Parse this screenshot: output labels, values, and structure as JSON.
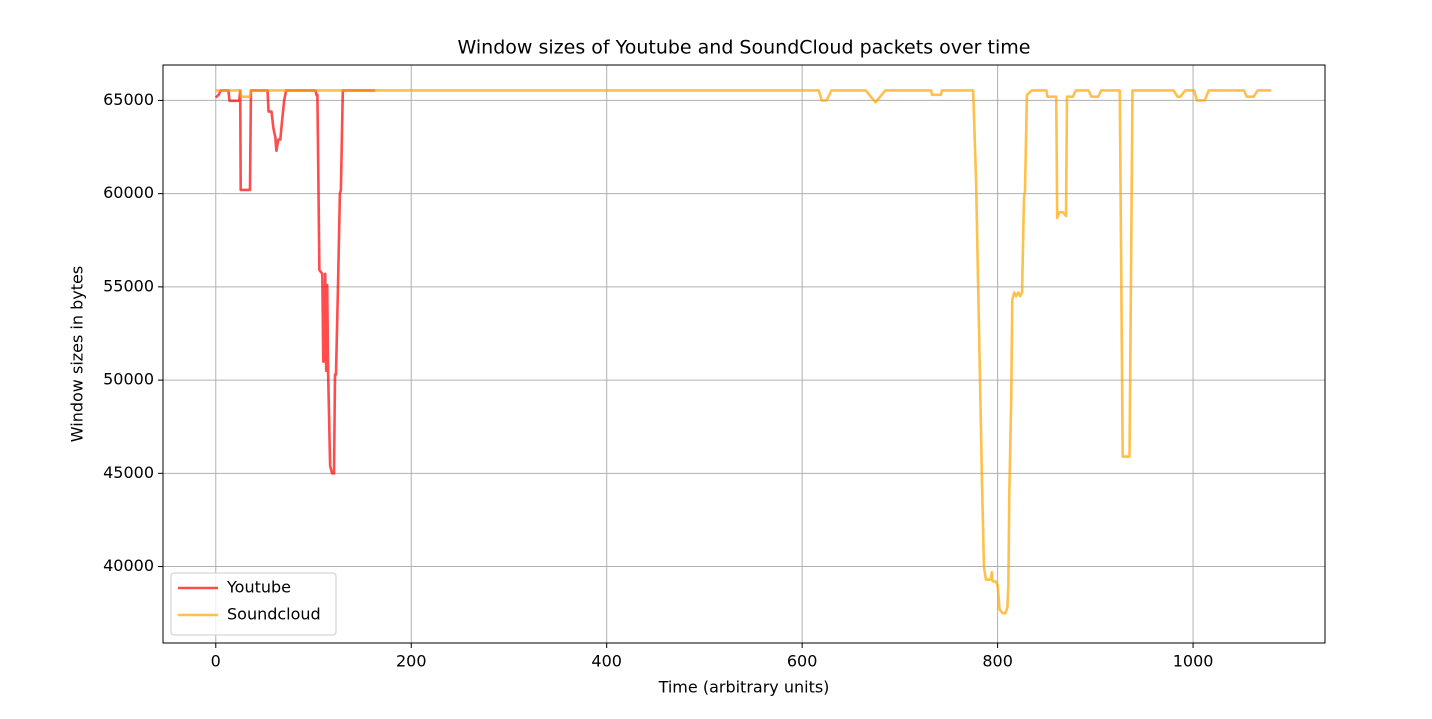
{
  "chart_data": {
    "type": "line",
    "title": "Window sizes of Youtube and SoundCloud packets over time",
    "xlabel": "Time (arbitrary units)",
    "ylabel": "Window sizes in bytes",
    "xlim": [
      -54,
      1135
    ],
    "ylim": [
      35900,
      66900
    ],
    "xticks": [
      0,
      200,
      400,
      600,
      800,
      1000
    ],
    "yticks": [
      40000,
      45000,
      50000,
      55000,
      60000,
      65000
    ],
    "grid": true,
    "legend": "lower left",
    "series": [
      {
        "name": "Youtube",
        "color": "#ff0000",
        "x": [
          0,
          3,
          5,
          13,
          14,
          24,
          25,
          25.5,
          35,
          36,
          53,
          54,
          57,
          59,
          61,
          62,
          64,
          66,
          68,
          70,
          72,
          102,
          103,
          104,
          105,
          106,
          109,
          110,
          111,
          112,
          113,
          114,
          115,
          117,
          119,
          121,
          122,
          123,
          125,
          127,
          128,
          130,
          163
        ],
        "values": [
          65160,
          65300,
          65535,
          65535,
          64980,
          64980,
          65535,
          60200,
          60200,
          65535,
          65535,
          64400,
          64400,
          63500,
          63000,
          62300,
          62900,
          62900,
          64000,
          65000,
          65535,
          65535,
          65300,
          65300,
          60700,
          55900,
          55700,
          51000,
          51000,
          55700,
          50500,
          55100,
          50300,
          45400,
          45000,
          45000,
          50300,
          50300,
          54900,
          60000,
          60200,
          65535,
          65535
        ]
      },
      {
        "name": "Soundcloud",
        "color": "#ffa500",
        "x": [
          0,
          25,
          26,
          35,
          36,
          617,
          620,
          625,
          630,
          665,
          675,
          685,
          732,
          733,
          742,
          743,
          775,
          778,
          780,
          782,
          784,
          786,
          788,
          793,
          794,
          795,
          798,
          800,
          802,
          805,
          808,
          810,
          811,
          812,
          814,
          815,
          817,
          819,
          821,
          823,
          825,
          827,
          828,
          830,
          835,
          850,
          851,
          860,
          861,
          863,
          867,
          870,
          871,
          877,
          880,
          893,
          896,
          903,
          906,
          925,
          926,
          928,
          935,
          936,
          938,
          980,
          984,
          987,
          992,
          1001,
          1004,
          1012,
          1016,
          1052,
          1055,
          1062,
          1066,
          1080
        ],
        "values": [
          65535,
          65535,
          65200,
          65200,
          65535,
          65535,
          65000,
          65000,
          65535,
          65535,
          64900,
          65535,
          65535,
          65300,
          65300,
          65535,
          65535,
          60600,
          55300,
          50000,
          44600,
          40000,
          39300,
          39300,
          39700,
          39200,
          39200,
          39000,
          37700,
          37500,
          37500,
          37800,
          39000,
          44000,
          49200,
          54300,
          54700,
          54500,
          54700,
          54500,
          54700,
          59800,
          60100,
          65300,
          65535,
          65535,
          65200,
          65200,
          58700,
          59000,
          59000,
          58800,
          65200,
          65200,
          65535,
          65535,
          65200,
          65200,
          65535,
          65535,
          59000,
          45900,
          45900,
          52400,
          65535,
          65535,
          65200,
          65200,
          65535,
          65535,
          65000,
          65000,
          65535,
          65535,
          65200,
          65200,
          65535,
          65535
        ]
      }
    ]
  }
}
